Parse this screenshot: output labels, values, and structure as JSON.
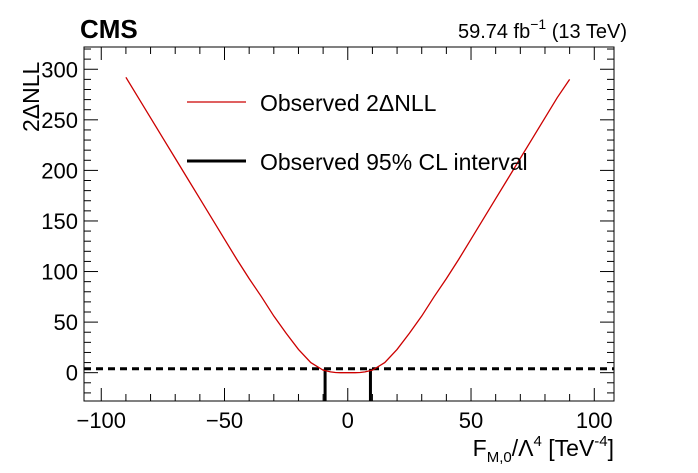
{
  "header": {
    "experiment": "CMS",
    "lumi_prefix": "59.74  fb",
    "lumi_exp": "−1",
    "energy": " (13 TeV)"
  },
  "chart_data": {
    "type": "line",
    "xlabel_main": "F",
    "xlabel_sub": "M,0",
    "xlabel_mid": "/Λ",
    "xlabel_sup": "4",
    "xlabel_unit": " [TeV",
    "xlabel_unit_sup": "-4",
    "xlabel_close": "]",
    "ylabel": "2ΔNLL",
    "xlim": [
      -107,
      108
    ],
    "ylim": [
      -28,
      322
    ],
    "xticks": [
      -100,
      -50,
      0,
      50,
      100
    ],
    "xtick_labels": [
      "−100",
      "−50",
      "0",
      "50",
      "100"
    ],
    "yticks": [
      0,
      50,
      100,
      150,
      200,
      250,
      300
    ],
    "ytick_labels": [
      "0",
      "50",
      "100",
      "150",
      "200",
      "250",
      "300"
    ],
    "series": [
      {
        "name": "Observed 2ΔNLL",
        "color": "#cc0000",
        "x": [
          -90,
          -85,
          -80,
          -75,
          -70,
          -65,
          -60,
          -55,
          -50,
          -45,
          -40,
          -35,
          -30,
          -25,
          -20,
          -15,
          -10,
          -7,
          -5,
          -3,
          0,
          3,
          5,
          7,
          10,
          15,
          20,
          25,
          30,
          35,
          40,
          45,
          50,
          55,
          60,
          65,
          70,
          75,
          80,
          85,
          90
        ],
        "y": [
          292,
          272,
          252,
          232,
          212,
          192,
          172,
          152,
          132,
          112,
          93,
          75,
          56,
          39,
          23,
          10,
          2.5,
          0.8,
          0.2,
          0.0,
          0.0,
          0.0,
          0.2,
          0.8,
          2.5,
          10,
          23,
          39,
          56,
          75,
          93,
          112,
          132,
          152,
          172,
          192,
          212,
          232,
          252,
          272,
          290
        ]
      }
    ],
    "threshold": {
      "y": 3.84,
      "style": "dashed",
      "color": "#000000"
    },
    "interval": {
      "name": "Observed 95% CL interval",
      "bounds": [
        -9.2,
        9.2
      ],
      "color": "#000000"
    },
    "legend": {
      "placement": "top-center",
      "entries": [
        "Observed 2ΔNLL",
        "Observed 95% CL interval"
      ]
    },
    "grid": false
  }
}
